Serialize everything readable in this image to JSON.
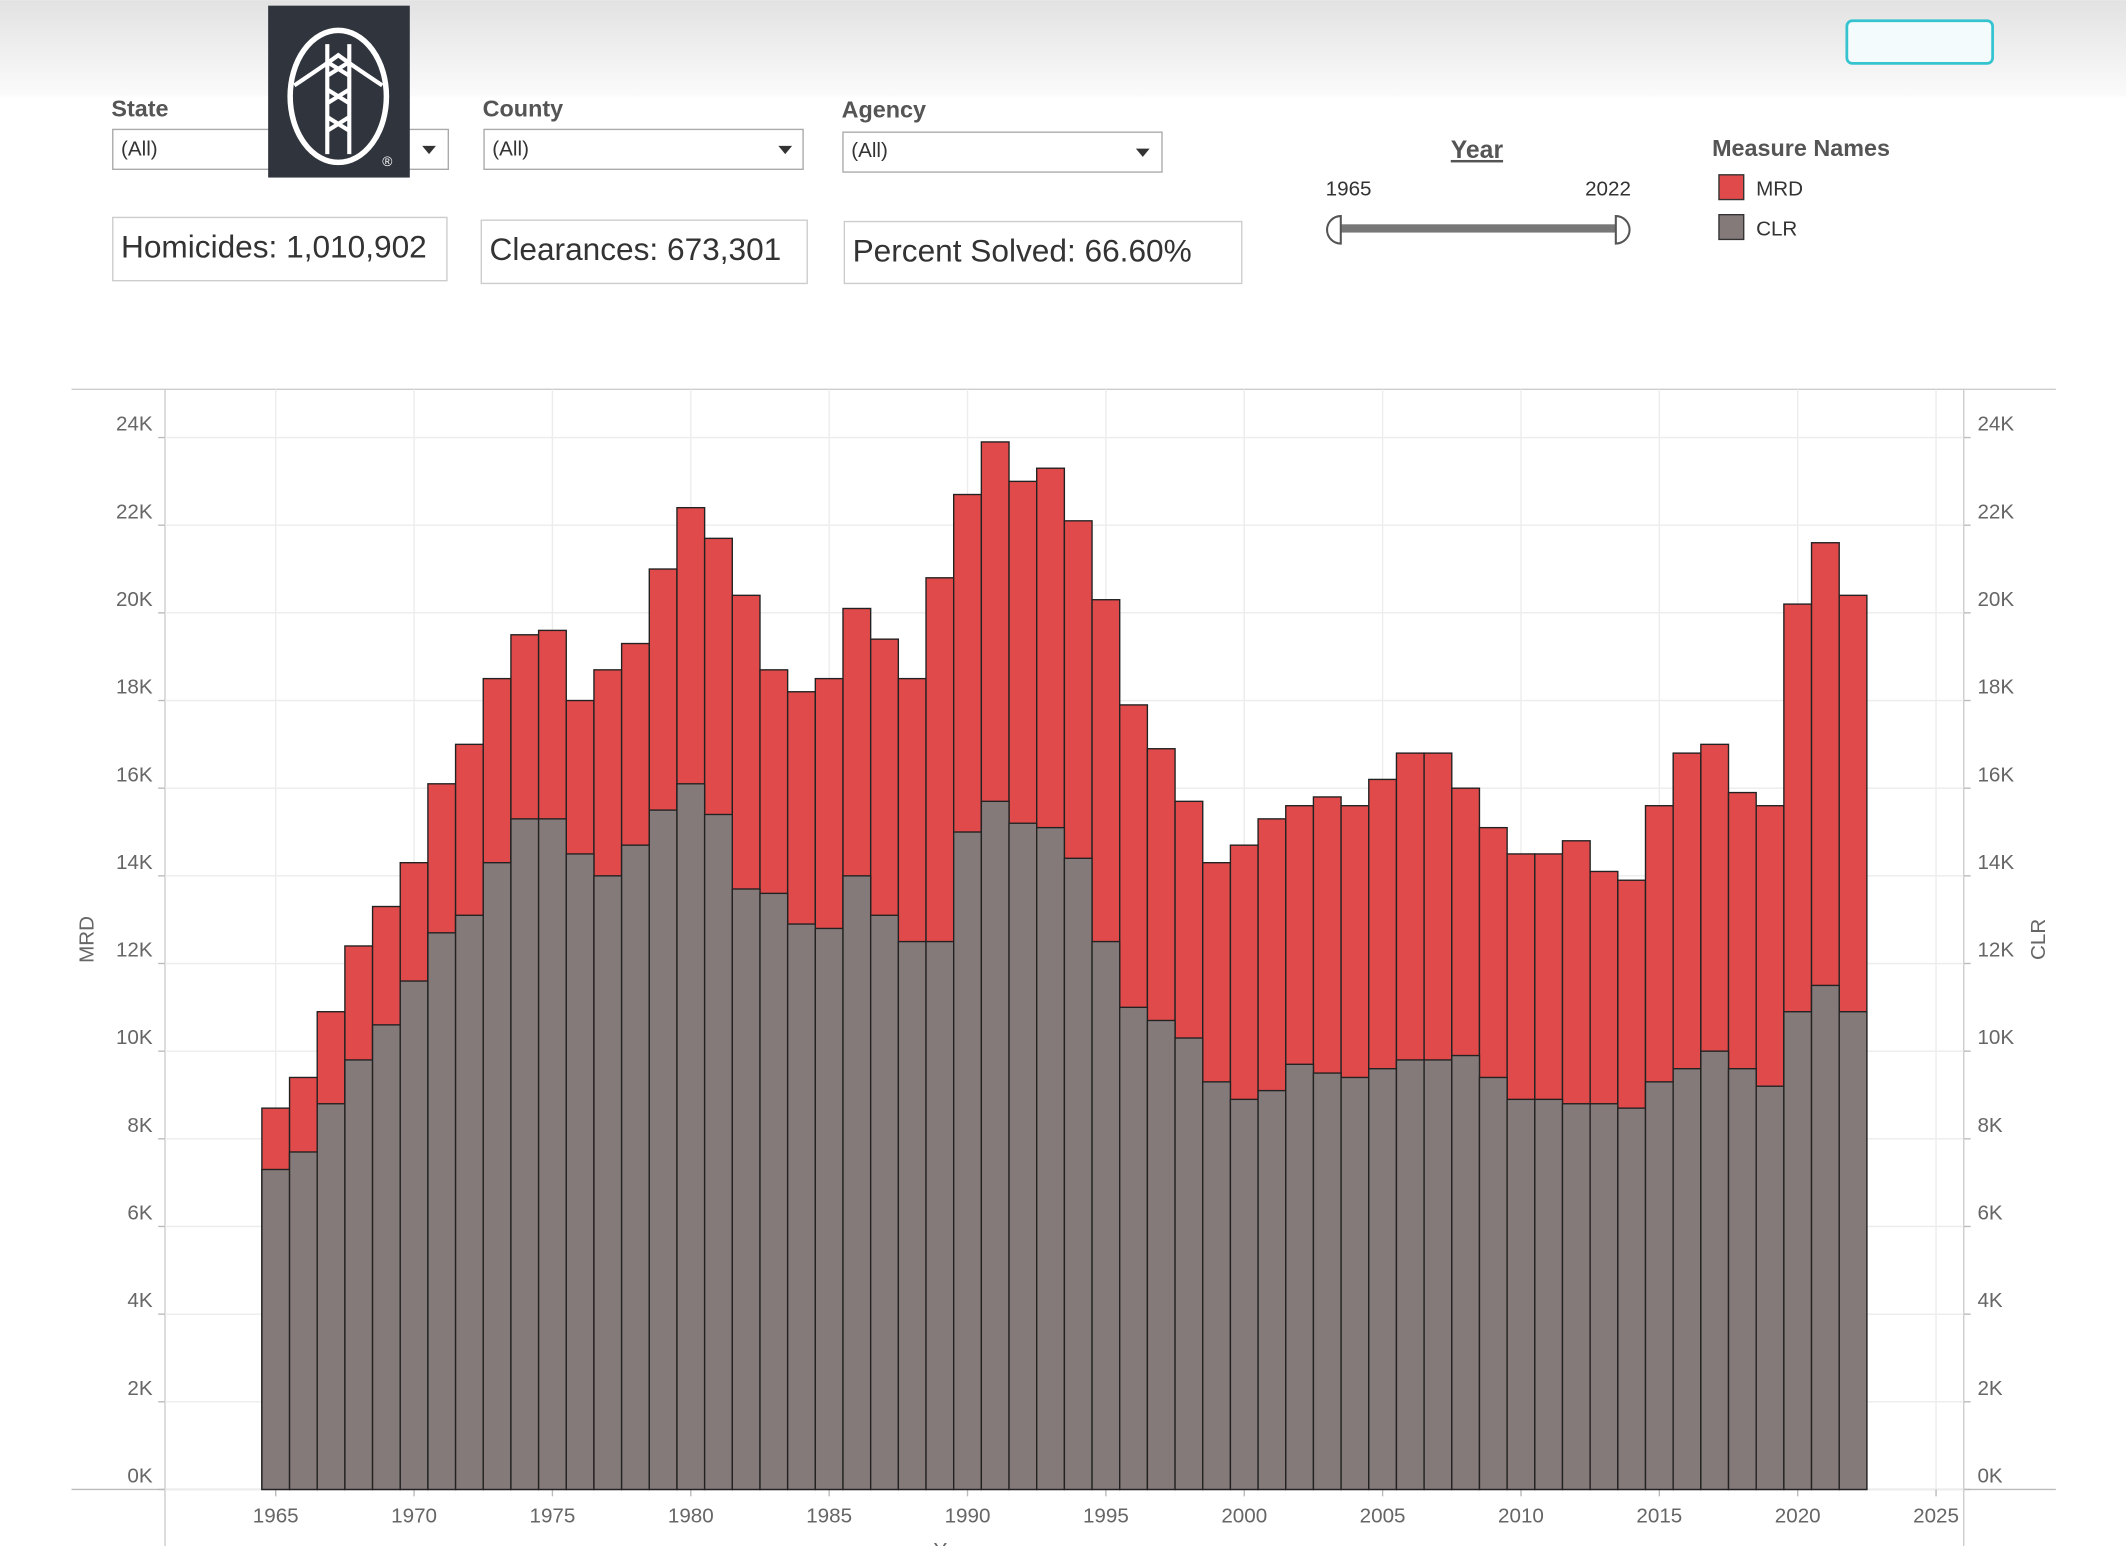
{
  "filters": {
    "state": {
      "label": "State",
      "value": "(All)"
    },
    "county": {
      "label": "County",
      "value": "(All)"
    },
    "agency": {
      "label": "Agency",
      "value": "(All)"
    }
  },
  "kpis": {
    "homicides": "Homicides: 1,010,902",
    "clearances": "Clearances: 673,301",
    "percent_solved": "Percent Solved: 66.60%"
  },
  "year_slider": {
    "title": "Year",
    "start": 1965,
    "end": 2022
  },
  "legend_title": "Measure Names",
  "chart_data": {
    "type": "bar",
    "xlabel": "Year",
    "ylabel": "MRD",
    "y2label": "CLR",
    "x": [
      1965,
      1966,
      1967,
      1968,
      1969,
      1970,
      1971,
      1972,
      1973,
      1974,
      1975,
      1976,
      1977,
      1978,
      1979,
      1980,
      1981,
      1982,
      1983,
      1984,
      1985,
      1986,
      1987,
      1988,
      1989,
      1990,
      1991,
      1992,
      1993,
      1994,
      1995,
      1996,
      1997,
      1998,
      1999,
      2000,
      2001,
      2002,
      2003,
      2004,
      2005,
      2006,
      2007,
      2008,
      2009,
      2010,
      2011,
      2012,
      2013,
      2014,
      2015,
      2016,
      2017,
      2018,
      2019,
      2020,
      2021,
      2022
    ],
    "series": [
      {
        "name": "MRD",
        "color": "#e04a4a",
        "values": [
          8700,
          9400,
          10900,
          12400,
          13300,
          14300,
          16100,
          17000,
          18500,
          19500,
          19600,
          18000,
          18700,
          19300,
          21000,
          22400,
          21700,
          20400,
          18700,
          18200,
          18500,
          20100,
          19400,
          18500,
          20800,
          22700,
          23900,
          23000,
          23300,
          22100,
          20300,
          17900,
          16900,
          15700,
          14300,
          14700,
          15300,
          15600,
          15800,
          15600,
          16200,
          16800,
          16800,
          16000,
          15100,
          14500,
          14500,
          14800,
          14100,
          13900,
          15600,
          16800,
          17000,
          15900,
          15600,
          20200,
          21600,
          20400
        ]
      },
      {
        "name": "CLR",
        "color": "#857a7a",
        "axis": "y2",
        "values": [
          7300,
          7700,
          8800,
          9800,
          10600,
          11600,
          12700,
          13100,
          14300,
          15300,
          15300,
          14500,
          14000,
          14700,
          15500,
          16100,
          15400,
          13700,
          13600,
          12900,
          12800,
          14000,
          13100,
          12500,
          12500,
          15000,
          15700,
          15200,
          15100,
          14400,
          12500,
          11000,
          10700,
          10300,
          9300,
          8900,
          9100,
          9700,
          9500,
          9400,
          9600,
          9800,
          9800,
          9900,
          9400,
          8900,
          8900,
          8800,
          8800,
          8700,
          9300,
          9600,
          10000,
          9600,
          9200,
          10900,
          11500,
          10900
        ]
      }
    ],
    "xlim": [
      1961,
      2026
    ],
    "xticks": [
      1965,
      1970,
      1975,
      1980,
      1985,
      1990,
      1995,
      2000,
      2005,
      2010,
      2015,
      2020,
      2025
    ],
    "ylim": [
      0,
      25100
    ],
    "yticks": [
      {
        "value": 0,
        "label": "0K"
      },
      {
        "value": 2000,
        "label": "2K"
      },
      {
        "value": 4000,
        "label": "4K"
      },
      {
        "value": 6000,
        "label": "6K"
      },
      {
        "value": 8000,
        "label": "8K"
      },
      {
        "value": 10000,
        "label": "10K"
      },
      {
        "value": 12000,
        "label": "12K"
      },
      {
        "value": 14000,
        "label": "14K"
      },
      {
        "value": 16000,
        "label": "16K"
      },
      {
        "value": 18000,
        "label": "18K"
      },
      {
        "value": 20000,
        "label": "20K"
      },
      {
        "value": 22000,
        "label": "22K"
      },
      {
        "value": 24000,
        "label": "24K"
      }
    ],
    "y2lim": [
      0,
      25100
    ],
    "y2ticks": [
      {
        "value": 0,
        "label": "0K"
      },
      {
        "value": 2000,
        "label": "2K"
      },
      {
        "value": 4000,
        "label": "4K"
      },
      {
        "value": 6000,
        "label": "6K"
      },
      {
        "value": 8000,
        "label": "8K"
      },
      {
        "value": 10000,
        "label": "10K"
      },
      {
        "value": 12000,
        "label": "12K"
      },
      {
        "value": 14000,
        "label": "14K"
      },
      {
        "value": 16000,
        "label": "16K"
      },
      {
        "value": 18000,
        "label": "18K"
      },
      {
        "value": 20000,
        "label": "20K"
      },
      {
        "value": 22000,
        "label": "22K"
      },
      {
        "value": 24000,
        "label": "24K"
      }
    ],
    "grid": true
  }
}
